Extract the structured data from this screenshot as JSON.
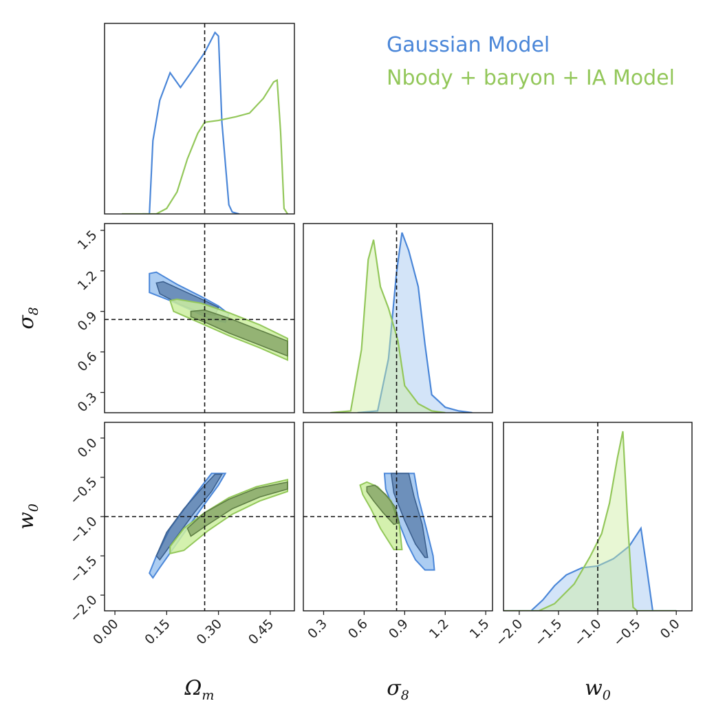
{
  "colors": {
    "gaussian": "#4a86d8",
    "gaussian_fill": "#9ec4f0",
    "gaussian_dark": "#3b5f8e",
    "nbody": "#93c75a",
    "nbody_fill": "#cdeea0",
    "nbody_dark": "#5f7f45",
    "truth": "#111111"
  },
  "legend": [
    {
      "label": "Gaussian Model",
      "color": "#4a86d8"
    },
    {
      "label": "Nbody + baryon + IA Model",
      "color": "#93c75a"
    }
  ],
  "chart_data": {
    "type": "corner",
    "parameters": [
      {
        "symbol": "Ω",
        "subscript": "m",
        "truth": 0.26,
        "range": [
          -0.03,
          0.52
        ],
        "ticks": [
          0.0,
          0.15,
          0.3,
          0.45
        ],
        "tick_labels": [
          "0.00",
          "0.15",
          "0.30",
          "0.45"
        ]
      },
      {
        "symbol": "σ",
        "subscript": "8",
        "truth": 0.84,
        "range": [
          0.15,
          1.55
        ],
        "ticks": [
          0.3,
          0.6,
          0.9,
          1.2,
          1.5
        ],
        "tick_labels": [
          "0.3",
          "0.6",
          "0.9",
          "1.2",
          "1.5"
        ]
      },
      {
        "symbol": "w",
        "subscript": "0",
        "truth": -1.0,
        "range": [
          -2.2,
          0.2
        ],
        "ticks": [
          -2.0,
          -1.5,
          -1.0,
          -0.5,
          0.0
        ],
        "tick_labels": [
          "−2.0",
          "−1.5",
          "−1.0",
          "−0.5",
          "0.0"
        ]
      }
    ],
    "marginals": [
      {
        "param": "Ω_m",
        "series": [
          {
            "name": "Gaussian Model",
            "x": [
              0.08,
              0.1,
              0.11,
              0.13,
              0.16,
              0.19,
              0.22,
              0.26,
              0.29,
              0.3,
              0.31,
              0.33,
              0.34,
              0.36
            ],
            "y": [
              0.0,
              0.0,
              0.4,
              0.62,
              0.77,
              0.69,
              0.77,
              0.88,
              0.99,
              0.97,
              0.5,
              0.05,
              0.01,
              0.0
            ]
          },
          {
            "name": "Nbody + baryon + IA Model",
            "x": [
              0.02,
              0.12,
              0.15,
              0.18,
              0.21,
              0.24,
              0.26,
              0.3,
              0.35,
              0.39,
              0.43,
              0.46,
              0.47,
              0.48,
              0.49,
              0.5
            ],
            "y": [
              0.0,
              0.0,
              0.03,
              0.12,
              0.3,
              0.44,
              0.5,
              0.51,
              0.53,
              0.55,
              0.63,
              0.72,
              0.73,
              0.45,
              0.03,
              0.0
            ]
          }
        ]
      },
      {
        "param": "σ_8",
        "series": [
          {
            "name": "Gaussian Model",
            "x": [
              0.55,
              0.7,
              0.78,
              0.84,
              0.88,
              0.93,
              1.0,
              1.05,
              1.1,
              1.2,
              1.3,
              1.4
            ],
            "y": [
              0.0,
              0.01,
              0.3,
              0.78,
              1.0,
              0.9,
              0.7,
              0.38,
              0.1,
              0.03,
              0.01,
              0.0
            ]
          },
          {
            "name": "Nbody + baryon + IA Model",
            "x": [
              0.35,
              0.5,
              0.58,
              0.63,
              0.67,
              0.72,
              0.78,
              0.85,
              0.9,
              1.0,
              1.1,
              1.2
            ],
            "y": [
              0.0,
              0.01,
              0.35,
              0.85,
              0.96,
              0.7,
              0.58,
              0.4,
              0.15,
              0.05,
              0.01,
              0.0
            ]
          }
        ]
      },
      {
        "param": "w_0",
        "series": [
          {
            "name": "Gaussian Model",
            "x": [
              -2.3,
              -1.85,
              -1.7,
              -1.55,
              -1.4,
              -1.2,
              -1.0,
              -0.8,
              -0.6,
              -0.45,
              -0.38,
              -0.3,
              0.0
            ],
            "y": [
              0.0,
              0.0,
              0.06,
              0.14,
              0.2,
              0.24,
              0.25,
              0.29,
              0.36,
              0.46,
              0.25,
              0.0,
              0.0
            ]
          },
          {
            "name": "Nbody + baryon + IA Model",
            "x": [
              -2.3,
              -1.75,
              -1.55,
              -1.3,
              -1.1,
              -0.95,
              -0.85,
              -0.75,
              -0.68,
              -0.62,
              -0.55,
              -0.5,
              0.0
            ],
            "y": [
              0.0,
              0.0,
              0.04,
              0.15,
              0.3,
              0.43,
              0.6,
              0.85,
              1.0,
              0.5,
              0.02,
              0.0,
              0.0
            ]
          }
        ]
      }
    ],
    "contours": [
      {
        "x_param": "Ω_m",
        "y_param": "σ_8",
        "series": [
          {
            "name": "Gaussian Model",
            "level": "outer",
            "x": [
              0.1,
              0.12,
              0.18,
              0.25,
              0.3,
              0.33,
              0.32,
              0.28,
              0.22,
              0.16,
              0.1
            ],
            "y": [
              1.18,
              1.19,
              1.1,
              1.01,
              0.94,
              0.88,
              0.82,
              0.84,
              0.91,
              0.98,
              1.04
            ]
          },
          {
            "name": "Gaussian Model",
            "level": "inner",
            "x": [
              0.12,
              0.14,
              0.2,
              0.26,
              0.3,
              0.29,
              0.25,
              0.19,
              0.13
            ],
            "y": [
              1.11,
              1.12,
              1.05,
              0.98,
              0.93,
              0.87,
              0.89,
              0.95,
              1.03
            ]
          },
          {
            "name": "Nbody + baryon + IA Model",
            "level": "outer",
            "x": [
              0.16,
              0.18,
              0.25,
              0.33,
              0.42,
              0.5,
              0.5,
              0.42,
              0.33,
              0.26,
              0.17
            ],
            "y": [
              0.98,
              0.99,
              0.96,
              0.89,
              0.8,
              0.7,
              0.54,
              0.63,
              0.72,
              0.8,
              0.9
            ]
          },
          {
            "name": "Nbody + baryon + IA Model",
            "level": "inner",
            "x": [
              0.22,
              0.26,
              0.33,
              0.41,
              0.5,
              0.5,
              0.41,
              0.33,
              0.27,
              0.22
            ],
            "y": [
              0.9,
              0.91,
              0.85,
              0.77,
              0.68,
              0.57,
              0.66,
              0.74,
              0.81,
              0.86
            ]
          }
        ]
      },
      {
        "x_param": "Ω_m",
        "y_param": "w_0",
        "series": [
          {
            "name": "Gaussian Model",
            "level": "outer",
            "x": [
              0.1,
              0.12,
              0.16,
              0.21,
              0.25,
              0.28,
              0.32,
              0.3,
              0.25,
              0.21,
              0.17,
              0.13,
              0.11
            ],
            "y": [
              -1.72,
              -1.5,
              -1.15,
              -0.85,
              -0.62,
              -0.45,
              -0.45,
              -0.6,
              -0.9,
              -1.15,
              -1.4,
              -1.65,
              -1.78
            ]
          },
          {
            "name": "Gaussian Model",
            "level": "inner",
            "x": [
              0.12,
              0.15,
              0.2,
              0.25,
              0.29,
              0.31,
              0.28,
              0.23,
              0.18,
              0.13
            ],
            "y": [
              -1.5,
              -1.2,
              -0.9,
              -0.65,
              -0.46,
              -0.46,
              -0.68,
              -0.95,
              -1.25,
              -1.55
            ]
          },
          {
            "name": "Nbody + baryon + IA Model",
            "level": "outer",
            "x": [
              0.16,
              0.2,
              0.26,
              0.33,
              0.41,
              0.5,
              0.5,
              0.42,
              0.34,
              0.27,
              0.2,
              0.16
            ],
            "y": [
              -1.38,
              -1.15,
              -0.95,
              -0.76,
              -0.62,
              -0.53,
              -0.68,
              -0.8,
              -0.97,
              -1.18,
              -1.43,
              -1.47
            ]
          },
          {
            "name": "Nbody + baryon + IA Model",
            "level": "inner",
            "x": [
              0.21,
              0.26,
              0.33,
              0.41,
              0.5,
              0.5,
              0.42,
              0.34,
              0.27,
              0.22
            ],
            "y": [
              -1.15,
              -0.95,
              -0.78,
              -0.64,
              -0.56,
              -0.65,
              -0.75,
              -0.9,
              -1.1,
              -1.25
            ]
          }
        ]
      },
      {
        "x_param": "σ_8",
        "y_param": "w_0",
        "series": [
          {
            "name": "Gaussian Model",
            "level": "outer",
            "x": [
              0.75,
              0.97,
              1.0,
              1.06,
              1.11,
              1.12,
              1.05,
              0.98,
              0.92,
              0.84,
              0.76
            ],
            "y": [
              -0.45,
              -0.45,
              -0.75,
              -1.15,
              -1.5,
              -1.68,
              -1.68,
              -1.55,
              -1.35,
              -1.0,
              -0.65
            ]
          },
          {
            "name": "Gaussian Model",
            "level": "inner",
            "x": [
              0.8,
              0.93,
              0.97,
              1.03,
              1.07,
              1.05,
              0.98,
              0.9,
              0.82
            ],
            "y": [
              -0.45,
              -0.45,
              -0.75,
              -1.1,
              -1.52,
              -1.52,
              -1.35,
              -1.05,
              -0.7
            ]
          },
          {
            "name": "Nbody + baryon + IA Model",
            "level": "outer",
            "x": [
              0.57,
              0.62,
              0.7,
              0.8,
              0.86,
              0.88,
              0.82,
              0.72,
              0.65,
              0.59
            ],
            "y": [
              -0.6,
              -0.56,
              -0.62,
              -0.8,
              -1.1,
              -1.42,
              -1.42,
              -1.15,
              -0.9,
              -0.72
            ]
          },
          {
            "name": "Nbody + baryon + IA Model",
            "level": "inner",
            "x": [
              0.62,
              0.68,
              0.76,
              0.83,
              0.86,
              0.82,
              0.74,
              0.67,
              0.62
            ],
            "y": [
              -0.62,
              -0.6,
              -0.72,
              -0.88,
              -1.08,
              -1.1,
              -0.95,
              -0.8,
              -0.68
            ]
          }
        ]
      }
    ]
  }
}
